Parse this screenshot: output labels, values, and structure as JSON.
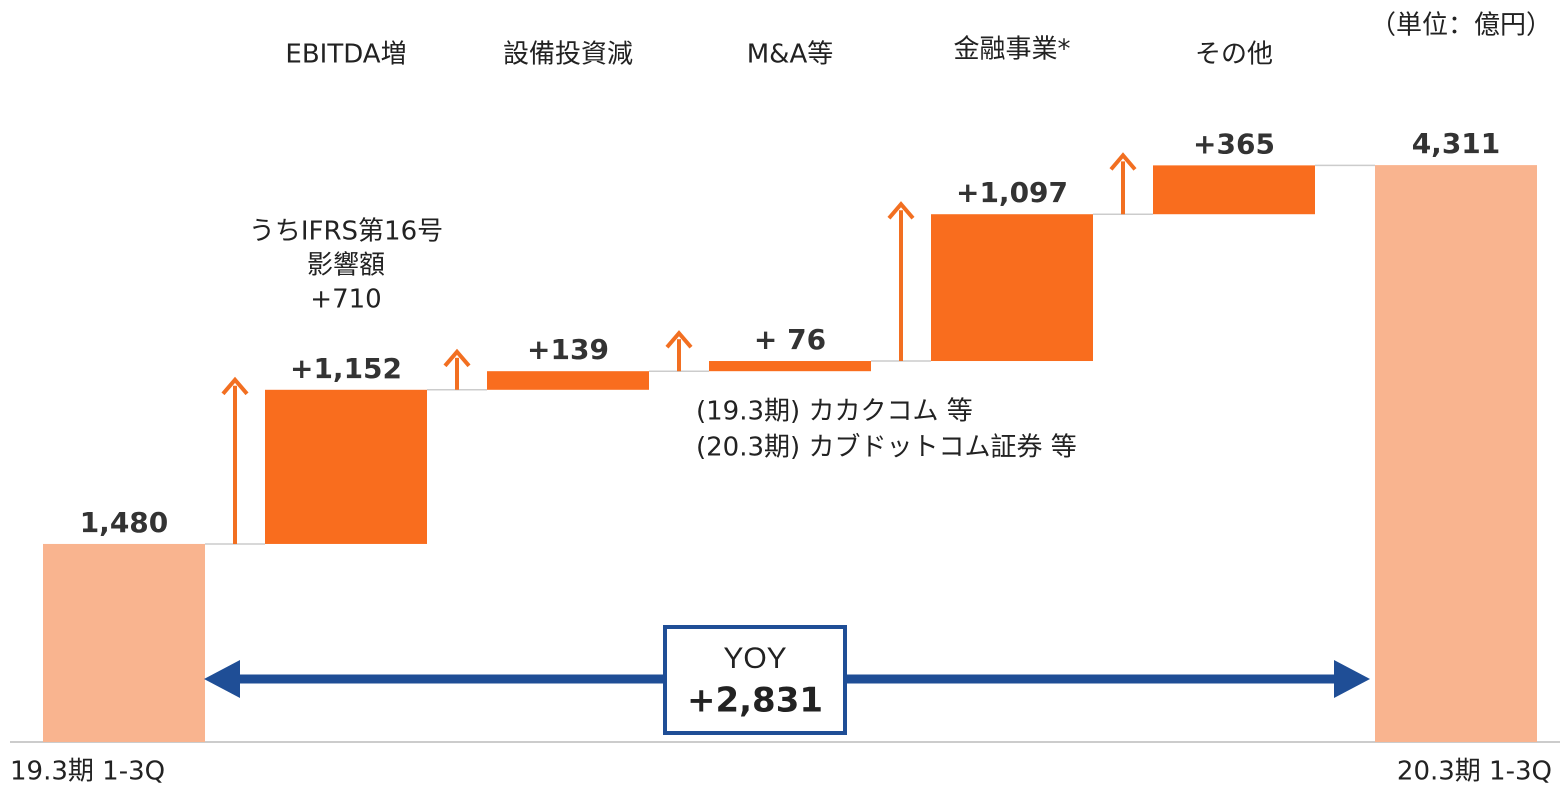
{
  "chart_data": {
    "type": "waterfall",
    "unit_label": "（単位：億円）",
    "categories": [
      "19.3期 1-3Q",
      "EBITDA増",
      "設備投資減",
      "M&A等",
      "金融事業*",
      "その他",
      "20.3期 1-3Q"
    ],
    "values": [
      1480,
      1152,
      139,
      76,
      1097,
      365,
      4311
    ],
    "value_labels": [
      "1,480",
      "+1,152",
      "+139",
      "+ 76",
      "+1,097",
      "+365",
      "4,311"
    ],
    "total_color": "#f9b48f",
    "delta_color": "#f96d1e",
    "ylim": [
      0,
      5500
    ],
    "annotations": [
      {
        "lines": [
          "うちIFRS第16号",
          "影響額",
          "+710"
        ]
      },
      {
        "lines": [
          "(19.3期) カカクコム 等",
          "(20.3期) カブドットコム証券 等"
        ]
      }
    ],
    "yoy": {
      "label": "YOY",
      "value": 2831,
      "value_label": "+2,831"
    }
  }
}
